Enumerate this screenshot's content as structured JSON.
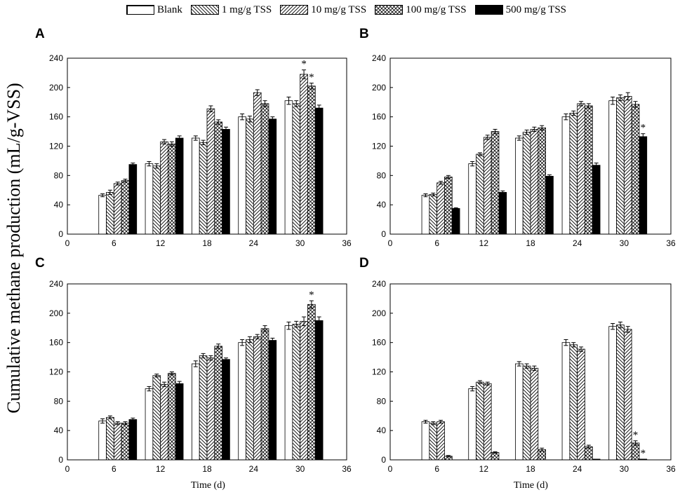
{
  "legend": [
    {
      "label": "Blank",
      "key": "blank"
    },
    {
      "label": "1 mg/g TSS",
      "key": "t1"
    },
    {
      "label": "10 mg/g TSS",
      "key": "t10"
    },
    {
      "label": "100 mg/g TSS",
      "key": "t100"
    },
    {
      "label": "500 mg/g TSS",
      "key": "t500"
    }
  ],
  "ylabel": "Cumulative methane production (mL/g-VSS)",
  "chart_data": [
    {
      "panel": "A",
      "type": "bar",
      "xlabel": "",
      "xlim": [
        0,
        36
      ],
      "ylim": [
        0,
        240
      ],
      "xticks": [
        0,
        6,
        12,
        18,
        24,
        30,
        36
      ],
      "yticks": [
        0,
        40,
        80,
        120,
        160,
        200,
        240
      ],
      "categories": [
        6,
        12,
        18,
        24,
        30
      ],
      "series": [
        {
          "name": "Blank",
          "values": [
            53,
            96,
            131,
            160,
            182
          ],
          "errors": [
            2,
            3,
            3,
            4,
            5
          ]
        },
        {
          "name": "1 mg/g TSS",
          "values": [
            57,
            93,
            125,
            157,
            178
          ],
          "errors": [
            3,
            3,
            3,
            4,
            4
          ]
        },
        {
          "name": "10 mg/g TSS",
          "values": [
            69,
            126,
            171,
            193,
            218
          ],
          "errors": [
            2,
            3,
            4,
            4,
            6
          ]
        },
        {
          "name": "100 mg/g TSS",
          "values": [
            73,
            123,
            153,
            178,
            202
          ],
          "errors": [
            2,
            3,
            3,
            4,
            4
          ]
        },
        {
          "name": "500 mg/g TSS",
          "values": [
            95,
            131,
            143,
            157,
            172
          ],
          "errors": [
            2,
            3,
            3,
            3,
            4
          ]
        }
      ],
      "annotations": [
        {
          "text": "*",
          "x": 30,
          "series": "10 mg/g TSS"
        },
        {
          "text": "*",
          "x": 30,
          "series": "100 mg/g TSS"
        }
      ]
    },
    {
      "panel": "B",
      "type": "bar",
      "xlabel": "",
      "xlim": [
        0,
        36
      ],
      "ylim": [
        0,
        240
      ],
      "xticks": [
        0,
        6,
        12,
        18,
        24,
        30,
        36
      ],
      "yticks": [
        0,
        40,
        80,
        120,
        160,
        200,
        240
      ],
      "categories": [
        6,
        12,
        18,
        24,
        30
      ],
      "series": [
        {
          "name": "Blank",
          "values": [
            53,
            96,
            131,
            160,
            182
          ],
          "errors": [
            2,
            3,
            3,
            4,
            5
          ]
        },
        {
          "name": "1 mg/g TSS",
          "values": [
            54,
            109,
            139,
            165,
            186
          ],
          "errors": [
            2,
            2,
            3,
            3,
            4
          ]
        },
        {
          "name": "10 mg/g TSS",
          "values": [
            70,
            132,
            143,
            178,
            188
          ],
          "errors": [
            2,
            3,
            3,
            3,
            5
          ]
        },
        {
          "name": "100 mg/g TSS",
          "values": [
            78,
            140,
            145,
            175,
            177
          ],
          "errors": [
            2,
            3,
            3,
            3,
            4
          ]
        },
        {
          "name": "500 mg/g TSS",
          "values": [
            35,
            57,
            79,
            94,
            133
          ],
          "errors": [
            1,
            2,
            2,
            3,
            4
          ]
        }
      ],
      "annotations": [
        {
          "text": "*",
          "x": 30,
          "series": "500 mg/g TSS"
        }
      ]
    },
    {
      "panel": "C",
      "type": "bar",
      "xlabel": "Time (d)",
      "xlim": [
        0,
        36
      ],
      "ylim": [
        0,
        240
      ],
      "xticks": [
        0,
        6,
        12,
        18,
        24,
        30,
        36
      ],
      "yticks": [
        0,
        40,
        80,
        120,
        160,
        200,
        240
      ],
      "categories": [
        6,
        12,
        18,
        24,
        30
      ],
      "series": [
        {
          "name": "Blank",
          "values": [
            53,
            97,
            131,
            160,
            183
          ],
          "errors": [
            3,
            3,
            4,
            4,
            5
          ]
        },
        {
          "name": "1 mg/g TSS",
          "values": [
            58,
            115,
            142,
            164,
            185
          ],
          "errors": [
            2,
            2,
            3,
            4,
            4
          ]
        },
        {
          "name": "10 mg/g TSS",
          "values": [
            50,
            103,
            139,
            168,
            189
          ],
          "errors": [
            2,
            3,
            3,
            3,
            6
          ]
        },
        {
          "name": "100 mg/g TSS",
          "values": [
            50,
            118,
            155,
            179,
            212
          ],
          "errors": [
            2,
            2,
            3,
            4,
            5
          ]
        },
        {
          "name": "500 mg/g TSS",
          "values": [
            55,
            104,
            137,
            163,
            190
          ],
          "errors": [
            2,
            3,
            2,
            3,
            5
          ]
        }
      ],
      "annotations": [
        {
          "text": "*",
          "x": 30,
          "series": "100 mg/g TSS"
        }
      ]
    },
    {
      "panel": "D",
      "type": "bar",
      "xlabel": "Time (d)",
      "xlim": [
        0,
        36
      ],
      "ylim": [
        0,
        240
      ],
      "xticks": [
        0,
        6,
        12,
        18,
        24,
        30,
        36
      ],
      "yticks": [
        0,
        40,
        80,
        120,
        160,
        200,
        240
      ],
      "categories": [
        6,
        12,
        18,
        24,
        30
      ],
      "series": [
        {
          "name": "Blank",
          "values": [
            52,
            97,
            131,
            160,
            182
          ],
          "errors": [
            2,
            3,
            3,
            4,
            4
          ]
        },
        {
          "name": "1 mg/g TSS",
          "values": [
            50,
            106,
            128,
            157,
            184
          ],
          "errors": [
            2,
            2,
            3,
            3,
            4
          ]
        },
        {
          "name": "10 mg/g TSS",
          "values": [
            52,
            104,
            125,
            151,
            178
          ],
          "errors": [
            2,
            2,
            3,
            3,
            4
          ]
        },
        {
          "name": "100 mg/g TSS",
          "values": [
            5,
            10,
            14,
            18,
            23
          ],
          "errors": [
            1,
            1,
            2,
            2,
            3
          ]
        },
        {
          "name": "500 mg/g TSS",
          "values": [
            0,
            0,
            0,
            1,
            1
          ],
          "errors": [
            0,
            0,
            0,
            0,
            0
          ]
        }
      ],
      "annotations": [
        {
          "text": "*",
          "x": 30,
          "series": "100 mg/g TSS"
        },
        {
          "text": "*",
          "x": 30,
          "series": "500 mg/g TSS"
        }
      ]
    }
  ]
}
